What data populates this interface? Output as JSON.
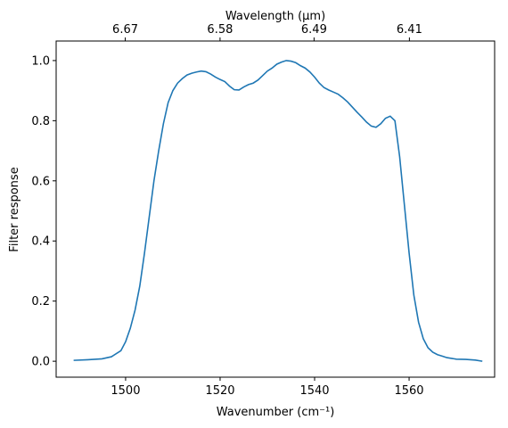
{
  "chart_data": {
    "type": "line",
    "x_label": "Wavenumber (cm⁻¹)",
    "y_label": "Filter response",
    "x2_label": "Wavelength (μm)",
    "color": "#1f77b4",
    "x": [
      1489,
      1492,
      1495,
      1497,
      1499,
      1500,
      1501,
      1502,
      1503,
      1504,
      1505,
      1506,
      1507,
      1508,
      1509,
      1510,
      1511,
      1512,
      1513,
      1514,
      1515,
      1516,
      1517,
      1518,
      1519,
      1520,
      1521,
      1522,
      1523,
      1524,
      1525,
      1526,
      1527,
      1528,
      1529,
      1530,
      1531,
      1532,
      1533,
      1534,
      1535,
      1536,
      1537,
      1538,
      1539,
      1540,
      1541,
      1542,
      1543,
      1544,
      1545,
      1546,
      1547,
      1548,
      1549,
      1550,
      1551,
      1552,
      1553,
      1554,
      1555,
      1556,
      1557,
      1558,
      1559,
      1560,
      1561,
      1562,
      1563,
      1564,
      1565,
      1566,
      1567,
      1568,
      1570,
      1572,
      1574,
      1575.5
    ],
    "values": [
      0.003,
      0.005,
      0.008,
      0.015,
      0.035,
      0.065,
      0.11,
      0.17,
      0.25,
      0.36,
      0.48,
      0.6,
      0.7,
      0.79,
      0.86,
      0.9,
      0.925,
      0.94,
      0.952,
      0.958,
      0.962,
      0.965,
      0.963,
      0.955,
      0.945,
      0.937,
      0.93,
      0.915,
      0.903,
      0.902,
      0.912,
      0.92,
      0.925,
      0.935,
      0.95,
      0.965,
      0.975,
      0.988,
      0.995,
      1.0,
      0.998,
      0.993,
      0.983,
      0.975,
      0.962,
      0.945,
      0.925,
      0.91,
      0.902,
      0.895,
      0.888,
      0.876,
      0.862,
      0.845,
      0.828,
      0.812,
      0.795,
      0.782,
      0.778,
      0.79,
      0.808,
      0.815,
      0.8,
      0.68,
      0.52,
      0.36,
      0.22,
      0.13,
      0.075,
      0.045,
      0.03,
      0.022,
      0.017,
      0.012,
      0.007,
      0.006,
      0.004,
      0.0
    ],
    "xlim": [
      1485.3,
      1578.1
    ],
    "ylim": [
      -0.053,
      1.065
    ],
    "xticks": [
      1500,
      1520,
      1540,
      1560
    ],
    "yticks": [
      {
        "value": 0,
        "label": "0.0"
      },
      {
        "value": 0.2,
        "label": "0.2"
      },
      {
        "value": 0.4,
        "label": "0.4"
      },
      {
        "value": 0.6,
        "label": "0.6"
      },
      {
        "value": 0.8,
        "label": "0.8"
      },
      {
        "value": 1.0,
        "label": "1.0"
      }
    ],
    "x2ticks": [
      {
        "value": 6.667,
        "label": "6.67"
      },
      {
        "value": 6.579,
        "label": "6.58"
      },
      {
        "value": 6.494,
        "label": "6.49"
      },
      {
        "value": 6.41,
        "label": "6.41"
      }
    ]
  }
}
